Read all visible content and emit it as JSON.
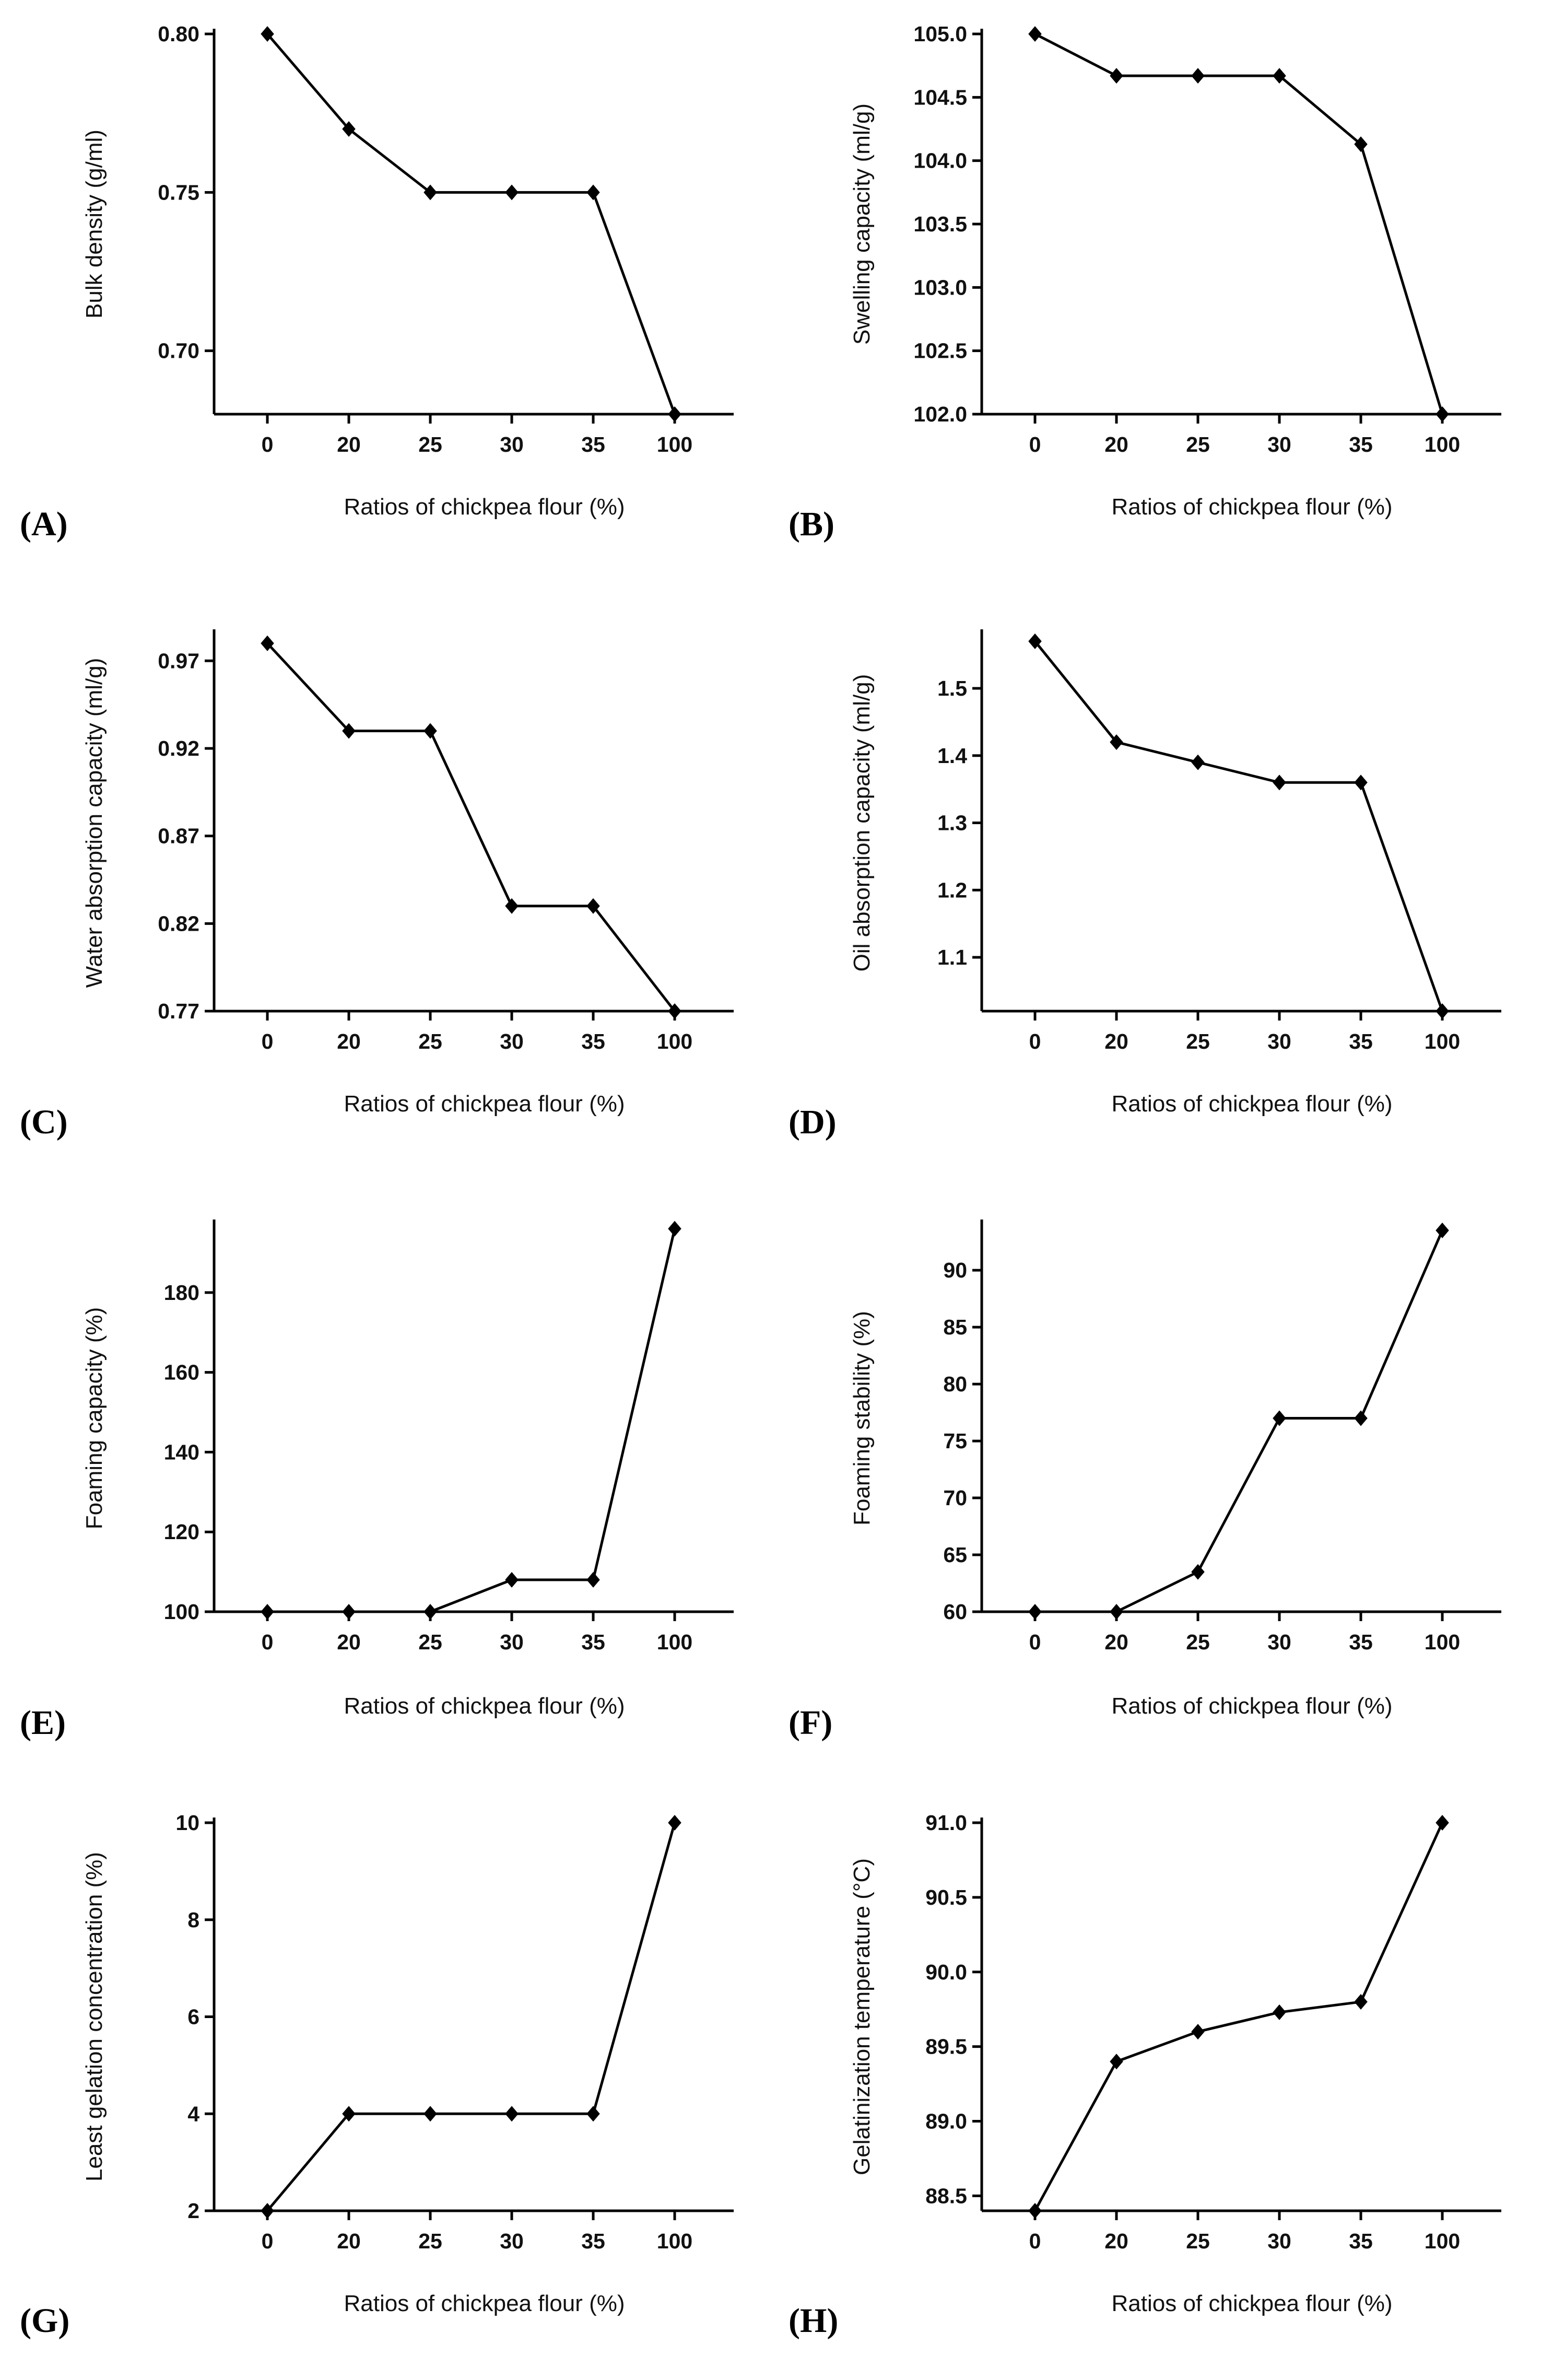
{
  "figure": {
    "x_category_labels": [
      "0",
      "20",
      "25",
      "30",
      "35",
      "100"
    ]
  },
  "chart_data": [
    {
      "panel": "(A)",
      "type": "line",
      "title": "",
      "xlabel": "Ratios of chickpea flour (%)",
      "ylabel": "Bulk density (g/ml)",
      "categories": [
        "0",
        "20",
        "25",
        "30",
        "35",
        "100"
      ],
      "values": [
        0.8,
        0.77,
        0.75,
        0.75,
        0.75,
        0.68
      ],
      "ylim": [
        0.68,
        0.8
      ],
      "yticks": [
        0.7,
        0.75,
        0.8
      ],
      "ytick_labels": [
        "0.70",
        "0.75",
        "0.80"
      ],
      "marker": "diamond"
    },
    {
      "panel": "(B)",
      "type": "line",
      "title": "",
      "xlabel": "Ratios of chickpea flour (%)",
      "ylabel": "Swelling capacity (ml/g)",
      "categories": [
        "0",
        "20",
        "25",
        "30",
        "35",
        "100"
      ],
      "values": [
        105.0,
        104.67,
        104.67,
        104.67,
        104.13,
        102.0
      ],
      "ylim": [
        102.0,
        105.0
      ],
      "yticks": [
        102.0,
        102.5,
        103.0,
        103.5,
        104.0,
        104.5,
        105.0
      ],
      "ytick_labels": [
        "102.0",
        "102.5",
        "103.0",
        "103.5",
        "104.0",
        "104.5",
        "105.0"
      ],
      "marker": "diamond"
    },
    {
      "panel": "(C)",
      "type": "line",
      "title": "",
      "xlabel": "Ratios of chickpea flour (%)",
      "ylabel": "Water absorption capacity (ml/g)",
      "categories": [
        "0",
        "20",
        "25",
        "30",
        "35",
        "100"
      ],
      "values": [
        0.98,
        0.93,
        0.93,
        0.83,
        0.83,
        0.77
      ],
      "ylim": [
        0.77,
        0.985
      ],
      "yticks": [
        0.77,
        0.82,
        0.87,
        0.92,
        0.97
      ],
      "ytick_labels": [
        "0.77",
        "0.82",
        "0.87",
        "0.92",
        "0.97"
      ],
      "marker": "diamond"
    },
    {
      "panel": "(D)",
      "type": "line",
      "title": "",
      "xlabel": "Ratios of chickpea flour (%)",
      "ylabel": "Oil absorption capacity (ml/g)",
      "categories": [
        "0",
        "20",
        "25",
        "30",
        "35",
        "100"
      ],
      "values": [
        1.57,
        1.42,
        1.39,
        1.36,
        1.36,
        1.02
      ],
      "ylim": [
        1.02,
        1.58
      ],
      "yticks": [
        1.1,
        1.2,
        1.3,
        1.4,
        1.5
      ],
      "ytick_labels": [
        "1.1",
        "1.2",
        "1.3",
        "1.4",
        "1.5"
      ],
      "marker": "diamond"
    },
    {
      "panel": "(E)",
      "type": "line",
      "title": "",
      "xlabel": "Ratios of chickpea flour (%)",
      "ylabel": "Foaming capacity (%)",
      "categories": [
        "0",
        "20",
        "25",
        "30",
        "35",
        "100"
      ],
      "values": [
        100,
        100,
        100,
        108,
        108,
        196
      ],
      "ylim": [
        100,
        197
      ],
      "yticks": [
        100,
        120,
        140,
        160,
        180
      ],
      "ytick_labels": [
        "100",
        "120",
        "140",
        "160",
        "180"
      ],
      "marker": "diamond"
    },
    {
      "panel": "(F)",
      "type": "line",
      "title": "",
      "xlabel": "Ratios of chickpea flour (%)",
      "ylabel": "Foaming stability (%)",
      "categories": [
        "0",
        "20",
        "25",
        "30",
        "35",
        "100"
      ],
      "values": [
        60,
        60,
        63.5,
        77,
        77,
        93.5
      ],
      "ylim": [
        60,
        94
      ],
      "yticks": [
        60,
        65,
        70,
        75,
        80,
        85,
        90
      ],
      "ytick_labels": [
        "60",
        "65",
        "70",
        "75",
        "80",
        "85",
        "90"
      ],
      "marker": "diamond"
    },
    {
      "panel": "(G)",
      "type": "line",
      "title": "",
      "xlabel": "Ratios of chickpea flour (%)",
      "ylabel": "Least gelation concentration (%)",
      "categories": [
        "0",
        "20",
        "25",
        "30",
        "35",
        "100"
      ],
      "values": [
        2,
        4,
        4,
        4,
        4,
        10
      ],
      "ylim": [
        2,
        10
      ],
      "yticks": [
        2,
        4,
        6,
        8,
        10
      ],
      "ytick_labels": [
        "2",
        "4",
        "6",
        "8",
        "10"
      ],
      "marker": "diamond"
    },
    {
      "panel": "(H)",
      "type": "line",
      "title": "",
      "xlabel": "Ratios of chickpea flour (%)",
      "ylabel": "Gelatinization temperature (°C)",
      "categories": [
        "0",
        "20",
        "25",
        "30",
        "35",
        "100"
      ],
      "values": [
        88.4,
        89.4,
        89.6,
        89.73,
        89.8,
        91.0
      ],
      "ylim": [
        88.4,
        91.0
      ],
      "yticks": [
        88.5,
        89.0,
        89.5,
        90.0,
        90.5,
        91.0
      ],
      "ytick_labels": [
        "88.5",
        "89.0",
        "89.5",
        "90.0",
        "90.5",
        "91.0"
      ],
      "marker": "diamond"
    }
  ]
}
